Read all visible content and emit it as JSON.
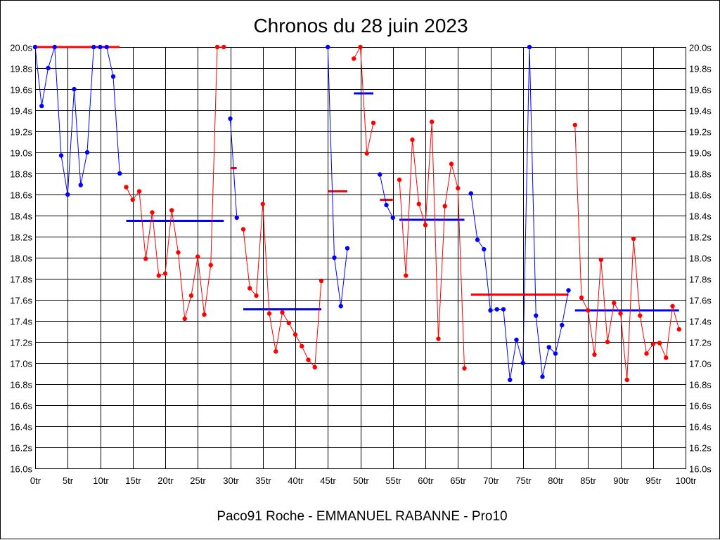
{
  "chart_data": {
    "type": "line",
    "title": "Chronos du 28 juin 2023",
    "footer": "Paco91 Roche - EMMANUEL RABANNE - Pro10",
    "xlim": [
      0,
      100
    ],
    "ylim": [
      16.0,
      20.0
    ],
    "x_ticks": [
      0,
      5,
      10,
      15,
      20,
      25,
      30,
      35,
      40,
      45,
      50,
      55,
      60,
      65,
      70,
      75,
      80,
      85,
      90,
      95,
      100
    ],
    "x_tick_labels": [
      "0tr",
      "5tr",
      "10tr",
      "15tr",
      "20tr",
      "25tr",
      "30tr",
      "35tr",
      "40tr",
      "45tr",
      "50tr",
      "55tr",
      "60tr",
      "65tr",
      "70tr",
      "75tr",
      "80tr",
      "85tr",
      "90tr",
      "95tr",
      "100tr"
    ],
    "y_ticks": [
      16.0,
      16.2,
      16.4,
      16.6,
      16.8,
      17.0,
      17.2,
      17.4,
      17.6,
      17.8,
      18.0,
      18.2,
      18.4,
      18.6,
      18.8,
      19.0,
      19.2,
      19.4,
      19.6,
      19.8,
      20.0
    ],
    "y_tick_labels": [
      "16.0s",
      "16.2s",
      "16.4s",
      "16.6s",
      "16.8s",
      "17.0s",
      "17.2s",
      "17.4s",
      "17.6s",
      "17.8s",
      "18.0s",
      "18.2s",
      "18.4s",
      "18.6s",
      "18.8s",
      "19.0s",
      "19.2s",
      "19.4s",
      "19.6s",
      "19.8s",
      "20.0s"
    ],
    "y_labels_both_sides": true,
    "grid": true,
    "colors": {
      "blue": "#0000ff",
      "red": "#ff0000"
    },
    "series": [
      {
        "color": "blue",
        "points": [
          [
            0,
            20.0
          ],
          [
            1,
            19.44
          ],
          [
            2,
            19.8
          ],
          [
            3,
            20.0
          ],
          [
            4,
            18.97
          ],
          [
            5,
            18.6
          ],
          [
            6,
            19.6
          ],
          [
            7,
            18.69
          ],
          [
            8,
            19.0
          ],
          [
            9,
            20.0
          ],
          [
            10,
            20.0
          ],
          [
            11,
            20.0
          ],
          [
            12,
            19.72
          ],
          [
            13,
            18.8
          ]
        ]
      },
      {
        "color": "red",
        "points": [
          [
            14,
            18.67
          ],
          [
            15,
            18.55
          ],
          [
            16,
            18.63
          ],
          [
            17,
            17.99
          ],
          [
            18,
            18.43
          ],
          [
            19,
            17.83
          ],
          [
            20,
            17.85
          ],
          [
            21,
            18.45
          ],
          [
            22,
            18.05
          ],
          [
            23,
            17.42
          ],
          [
            24,
            17.64
          ],
          [
            25,
            18.01
          ],
          [
            26,
            17.46
          ],
          [
            27,
            17.93
          ],
          [
            28,
            20.0
          ],
          [
            29,
            20.0
          ]
        ]
      },
      {
        "color": "blue",
        "points": [
          [
            30,
            19.32
          ],
          [
            31,
            18.38
          ]
        ]
      },
      {
        "color": "red",
        "points": [
          [
            32,
            18.27
          ],
          [
            33,
            17.71
          ],
          [
            34,
            17.64
          ],
          [
            35,
            18.51
          ],
          [
            36,
            17.47
          ],
          [
            37,
            17.11
          ],
          [
            38,
            17.48
          ],
          [
            39,
            17.38
          ],
          [
            40,
            17.27
          ],
          [
            41,
            17.16
          ],
          [
            42,
            17.03
          ],
          [
            43,
            16.96
          ],
          [
            44,
            17.78
          ]
        ]
      },
      {
        "color": "blue",
        "points": [
          [
            45,
            20.0
          ],
          [
            46,
            18.0
          ],
          [
            47,
            17.54
          ],
          [
            48,
            18.09
          ]
        ]
      },
      {
        "color": "red",
        "points": [
          [
            49,
            19.89
          ],
          [
            50,
            20.0
          ],
          [
            51,
            18.99
          ],
          [
            52,
            19.28
          ]
        ]
      },
      {
        "color": "blue",
        "points": [
          [
            53,
            18.79
          ],
          [
            54,
            18.5
          ],
          [
            55,
            18.38
          ]
        ]
      },
      {
        "color": "red",
        "points": [
          [
            56,
            18.74
          ],
          [
            57,
            17.83
          ],
          [
            58,
            19.12
          ],
          [
            59,
            18.51
          ],
          [
            60,
            18.31
          ],
          [
            61,
            19.29
          ],
          [
            62,
            17.23
          ],
          [
            63,
            18.49
          ],
          [
            64,
            18.89
          ],
          [
            65,
            18.66
          ],
          [
            66,
            16.95
          ]
        ]
      },
      {
        "color": "blue",
        "points": [
          [
            67,
            18.61
          ],
          [
            68,
            18.17
          ],
          [
            69,
            18.08
          ],
          [
            70,
            17.5
          ],
          [
            71,
            17.51
          ],
          [
            72,
            17.51
          ],
          [
            73,
            16.84
          ],
          [
            74,
            17.22
          ],
          [
            75,
            17.0
          ],
          [
            76,
            20.0
          ],
          [
            77,
            17.45
          ],
          [
            78,
            16.87
          ],
          [
            79,
            17.15
          ],
          [
            80,
            17.09
          ],
          [
            81,
            17.36
          ],
          [
            82,
            17.69
          ]
        ]
      },
      {
        "color": "red",
        "points": [
          [
            83,
            19.26
          ],
          [
            84,
            17.62
          ],
          [
            85,
            17.5
          ],
          [
            86,
            17.08
          ],
          [
            87,
            17.98
          ],
          [
            88,
            17.2
          ],
          [
            89,
            17.57
          ],
          [
            90,
            17.47
          ],
          [
            91,
            16.84
          ],
          [
            92,
            18.18
          ],
          [
            93,
            17.45
          ],
          [
            94,
            17.09
          ],
          [
            95,
            17.18
          ],
          [
            96,
            17.19
          ],
          [
            97,
            17.05
          ],
          [
            98,
            17.54
          ],
          [
            99,
            17.32
          ]
        ]
      }
    ],
    "averages": [
      {
        "color": "red",
        "x": [
          0,
          13
        ],
        "y": 20.0
      },
      {
        "color": "blue",
        "x": [
          14,
          29
        ],
        "y": 18.35
      },
      {
        "color": "red",
        "x": [
          30,
          31
        ],
        "y": 18.85
      },
      {
        "color": "blue",
        "x": [
          32,
          44
        ],
        "y": 17.51
      },
      {
        "color": "red",
        "x": [
          45,
          48
        ],
        "y": 18.63
      },
      {
        "color": "blue",
        "x": [
          49,
          52
        ],
        "y": 19.56
      },
      {
        "color": "red",
        "x": [
          53,
          55
        ],
        "y": 18.55
      },
      {
        "color": "blue",
        "x": [
          56,
          66
        ],
        "y": 18.36
      },
      {
        "color": "red",
        "x": [
          67,
          82
        ],
        "y": 17.65
      },
      {
        "color": "blue",
        "x": [
          83,
          99
        ],
        "y": 17.5
      }
    ]
  }
}
